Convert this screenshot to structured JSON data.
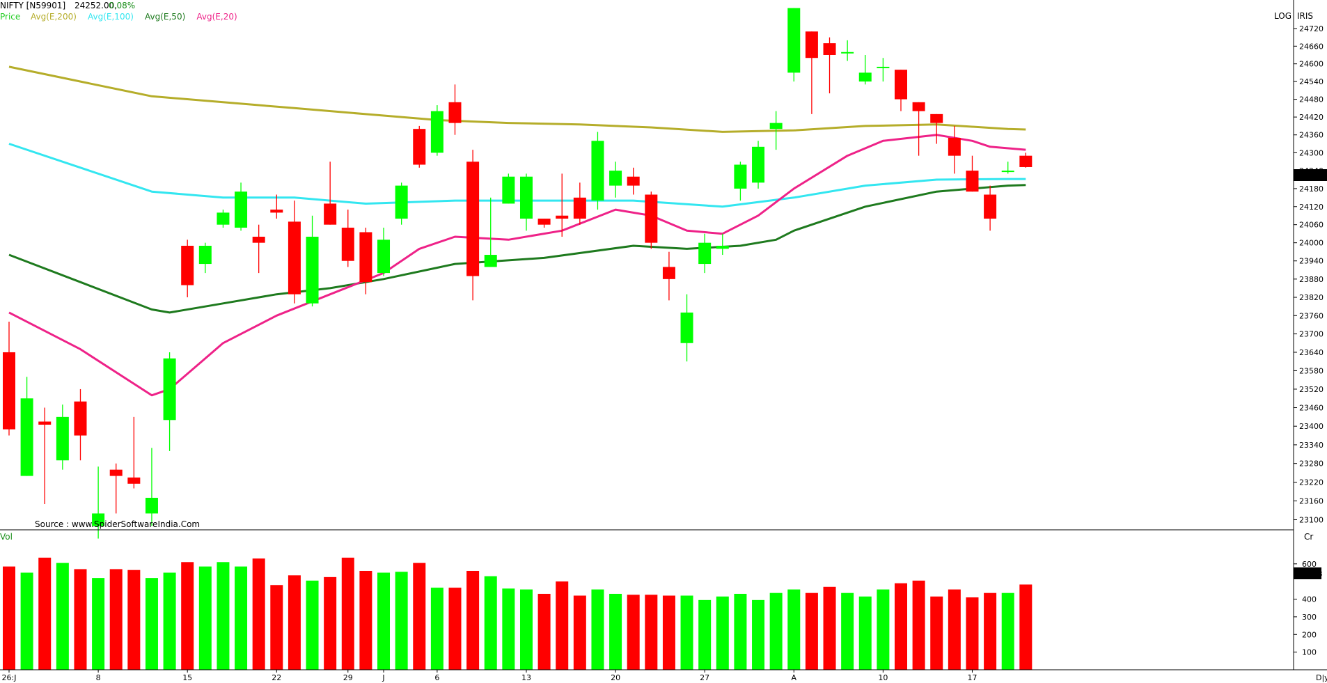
{
  "header": {
    "symbol": "NIFTY [N59901]",
    "price": "24252.00,",
    "change": "0.08%",
    "legend": [
      {
        "label": "Price",
        "color": "#22cc22"
      },
      {
        "label": "Avg(E,200)",
        "color": "#b5ad2a"
      },
      {
        "label": "Avg(E,100)",
        "color": "#33e6f0"
      },
      {
        "label": "Avg(E,50)",
        "color": "#1e7a1e"
      },
      {
        "label": "Avg(E,20)",
        "color": "#ee2288"
      }
    ],
    "log_label": "LOG",
    "iris_label": "IRIS"
  },
  "source_text": "Source : www.SpiderSoftwareIndia.Com",
  "volume_panel": {
    "label": "Vol",
    "unit": "Cr",
    "current_value": "483.08",
    "axis_ticks": [
      100,
      200,
      300,
      400,
      600
    ]
  },
  "price_panel": {
    "current_value": "24252.0",
    "axis_ticks": [
      23100,
      23160,
      23220,
      23280,
      23340,
      23400,
      23460,
      23520,
      23580,
      23640,
      23700,
      23760,
      23820,
      23880,
      23940,
      24000,
      24060,
      24120,
      24180,
      24240,
      24300,
      24360,
      24420,
      24480,
      24540,
      24600,
      24660,
      24720
    ]
  },
  "x_axis": {
    "period_label": "D|y",
    "labels": [
      {
        "text": "26:J",
        "index": 0
      },
      {
        "text": "8",
        "index": 5
      },
      {
        "text": "15",
        "index": 10
      },
      {
        "text": "22",
        "index": 15
      },
      {
        "text": "29",
        "index": 19
      },
      {
        "text": "J",
        "index": 21
      },
      {
        "text": "6",
        "index": 24
      },
      {
        "text": "13",
        "index": 29
      },
      {
        "text": "20",
        "index": 34
      },
      {
        "text": "27",
        "index": 39
      },
      {
        "text": "A",
        "index": 44
      },
      {
        "text": "10",
        "index": 49
      },
      {
        "text": "17",
        "index": 54
      }
    ]
  },
  "colors": {
    "up": "#00ff00",
    "down": "#ff0000",
    "ema200": "#b5ad2a",
    "ema100": "#33e6f0",
    "ema50": "#1e7a1e",
    "ema20": "#ee2288"
  },
  "chart_data": {
    "type": "candlestick",
    "scale": "log",
    "ylim": [
      23070,
      24770
    ],
    "volume_ylim": [
      0,
      720
    ],
    "candles": [
      {
        "o": 23640,
        "h": 23740,
        "l": 23370,
        "c": 23390,
        "v": 585
      },
      {
        "o": 23240,
        "h": 23560,
        "l": 23240,
        "c": 23490,
        "v": 550
      },
      {
        "o": 23415,
        "h": 23460,
        "l": 23150,
        "c": 23405,
        "v": 635
      },
      {
        "o": 23290,
        "h": 23470,
        "l": 23260,
        "c": 23430,
        "v": 605
      },
      {
        "o": 23480,
        "h": 23520,
        "l": 23290,
        "c": 23370,
        "v": 570
      },
      {
        "o": 23080,
        "h": 23270,
        "l": 23040,
        "c": 23120,
        "v": 520
      },
      {
        "o": 23260,
        "h": 23280,
        "l": 23120,
        "c": 23240,
        "v": 570
      },
      {
        "o": 23235,
        "h": 23430,
        "l": 23200,
        "c": 23215,
        "v": 565
      },
      {
        "o": 23120,
        "h": 23330,
        "l": 23080,
        "c": 23170,
        "v": 520
      },
      {
        "o": 23420,
        "h": 23640,
        "l": 23320,
        "c": 23620,
        "v": 550
      },
      {
        "o": 23990,
        "h": 24010,
        "l": 23820,
        "c": 23860,
        "v": 610
      },
      {
        "o": 23930,
        "h": 24000,
        "l": 23900,
        "c": 23990,
        "v": 585
      },
      {
        "o": 24060,
        "h": 24110,
        "l": 24050,
        "c": 24100,
        "v": 610
      },
      {
        "o": 24050,
        "h": 24200,
        "l": 24040,
        "c": 24170,
        "v": 585
      },
      {
        "o": 24020,
        "h": 24060,
        "l": 23900,
        "c": 24000,
        "v": 630
      },
      {
        "o": 24110,
        "h": 24160,
        "l": 24080,
        "c": 24100,
        "v": 480
      },
      {
        "o": 24070,
        "h": 24140,
        "l": 23800,
        "c": 23830,
        "v": 535
      },
      {
        "o": 23800,
        "h": 24090,
        "l": 23790,
        "c": 24020,
        "v": 505
      },
      {
        "o": 24130,
        "h": 24270,
        "l": 24060,
        "c": 24060,
        "v": 525
      },
      {
        "o": 24050,
        "h": 24110,
        "l": 23920,
        "c": 23940,
        "v": 635
      },
      {
        "o": 24035,
        "h": 24050,
        "l": 23830,
        "c": 23870,
        "v": 560
      },
      {
        "o": 23900,
        "h": 24050,
        "l": 23890,
        "c": 24010,
        "v": 550
      },
      {
        "o": 24080,
        "h": 24200,
        "l": 24060,
        "c": 24190,
        "v": 555
      },
      {
        "o": 24380,
        "h": 24390,
        "l": 24250,
        "c": 24260,
        "v": 605
      },
      {
        "o": 24300,
        "h": 24460,
        "l": 24290,
        "c": 24440,
        "v": 465
      },
      {
        "o": 24470,
        "h": 24530,
        "l": 24360,
        "c": 24400,
        "v": 465
      },
      {
        "o": 24270,
        "h": 24310,
        "l": 23810,
        "c": 23890,
        "v": 560
      },
      {
        "o": 23920,
        "h": 24150,
        "l": 23920,
        "c": 23960,
        "v": 530
      },
      {
        "o": 24130,
        "h": 24230,
        "l": 24130,
        "c": 24220,
        "v": 460
      },
      {
        "o": 24080,
        "h": 24230,
        "l": 24040,
        "c": 24220,
        "v": 455
      },
      {
        "o": 24080,
        "h": 24080,
        "l": 24050,
        "c": 24060,
        "v": 430
      },
      {
        "o": 24090,
        "h": 24230,
        "l": 24020,
        "c": 24080,
        "v": 500
      },
      {
        "o": 24150,
        "h": 24200,
        "l": 24060,
        "c": 24080,
        "v": 420
      },
      {
        "o": 24140,
        "h": 24370,
        "l": 24110,
        "c": 24340,
        "v": 455
      },
      {
        "o": 24190,
        "h": 24270,
        "l": 24150,
        "c": 24240,
        "v": 430
      },
      {
        "o": 24220,
        "h": 24250,
        "l": 24160,
        "c": 24190,
        "v": 425
      },
      {
        "o": 24160,
        "h": 24170,
        "l": 23980,
        "c": 24000,
        "v": 425
      },
      {
        "o": 23920,
        "h": 23970,
        "l": 23810,
        "c": 23880,
        "v": 420
      },
      {
        "o": 23670,
        "h": 23830,
        "l": 23610,
        "c": 23770,
        "v": 420
      },
      {
        "o": 23930,
        "h": 24030,
        "l": 23900,
        "c": 24000,
        "v": 395
      },
      {
        "o": 23980,
        "h": 24030,
        "l": 23960,
        "c": 23990,
        "v": 415
      },
      {
        "o": 24180,
        "h": 24270,
        "l": 24140,
        "c": 24260,
        "v": 430
      },
      {
        "o": 24200,
        "h": 24340,
        "l": 24180,
        "c": 24320,
        "v": 395
      },
      {
        "o": 24380,
        "h": 24440,
        "l": 24310,
        "c": 24400,
        "v": 435
      },
      {
        "o": 24570,
        "h": 24790,
        "l": 24540,
        "c": 24790,
        "v": 455
      },
      {
        "o": 24710,
        "h": 24710,
        "l": 24430,
        "c": 24620,
        "v": 435
      },
      {
        "o": 24670,
        "h": 24690,
        "l": 24500,
        "c": 24630,
        "v": 470
      },
      {
        "o": 24640,
        "h": 24680,
        "l": 24610,
        "c": 24640,
        "v": 435
      },
      {
        "o": 24540,
        "h": 24630,
        "l": 24530,
        "c": 24570,
        "v": 415
      },
      {
        "o": 24590,
        "h": 24620,
        "l": 24540,
        "c": 24590,
        "v": 455
      },
      {
        "o": 24580,
        "h": 24580,
        "l": 24440,
        "c": 24480,
        "v": 490
      },
      {
        "o": 24470,
        "h": 24470,
        "l": 24290,
        "c": 24440,
        "v": 505
      },
      {
        "o": 24430,
        "h": 24430,
        "l": 24330,
        "c": 24400,
        "v": 415
      },
      {
        "o": 24350,
        "h": 24390,
        "l": 24230,
        "c": 24290,
        "v": 455
      },
      {
        "o": 24240,
        "h": 24290,
        "l": 24170,
        "c": 24170,
        "v": 410
      },
      {
        "o": 24160,
        "h": 24190,
        "l": 24040,
        "c": 24080,
        "v": 435
      },
      {
        "o": 24240,
        "h": 24270,
        "l": 24230,
        "c": 24240,
        "v": 435
      },
      {
        "o": 24290,
        "h": 24300,
        "l": 24250,
        "c": 24252,
        "v": 483
      }
    ],
    "ema200": [
      [
        0,
        24590
      ],
      [
        8,
        24490
      ],
      [
        12,
        24470
      ],
      [
        16,
        24450
      ],
      [
        20,
        24430
      ],
      [
        24,
        24410
      ],
      [
        28,
        24400
      ],
      [
        32,
        24395
      ],
      [
        36,
        24385
      ],
      [
        40,
        24370
      ],
      [
        44,
        24375
      ],
      [
        48,
        24390
      ],
      [
        52,
        24395
      ],
      [
        56,
        24380
      ],
      [
        57,
        24378
      ]
    ],
    "ema100": [
      [
        0,
        24330
      ],
      [
        4,
        24250
      ],
      [
        8,
        24170
      ],
      [
        12,
        24150
      ],
      [
        16,
        24150
      ],
      [
        20,
        24130
      ],
      [
        25,
        24140
      ],
      [
        30,
        24140
      ],
      [
        35,
        24140
      ],
      [
        40,
        24120
      ],
      [
        44,
        24150
      ],
      [
        48,
        24190
      ],
      [
        52,
        24210
      ],
      [
        56,
        24212
      ],
      [
        57,
        24212
      ]
    ],
    "ema50": [
      [
        0,
        23960
      ],
      [
        4,
        23870
      ],
      [
        8,
        23780
      ],
      [
        9,
        23770
      ],
      [
        12,
        23800
      ],
      [
        15,
        23830
      ],
      [
        18,
        23850
      ],
      [
        21,
        23880
      ],
      [
        25,
        23930
      ],
      [
        30,
        23950
      ],
      [
        35,
        23990
      ],
      [
        38,
        23980
      ],
      [
        41,
        23990
      ],
      [
        43,
        24010
      ],
      [
        44,
        24040
      ],
      [
        48,
        24120
      ],
      [
        52,
        24170
      ],
      [
        56,
        24190
      ],
      [
        57,
        24192
      ]
    ],
    "ema20": [
      [
        0,
        23770
      ],
      [
        4,
        23650
      ],
      [
        8,
        23500
      ],
      [
        9,
        23520
      ],
      [
        12,
        23670
      ],
      [
        15,
        23760
      ],
      [
        18,
        23830
      ],
      [
        21,
        23900
      ],
      [
        23,
        23980
      ],
      [
        25,
        24020
      ],
      [
        28,
        24010
      ],
      [
        31,
        24040
      ],
      [
        34,
        24110
      ],
      [
        36,
        24090
      ],
      [
        38,
        24040
      ],
      [
        40,
        24030
      ],
      [
        42,
        24090
      ],
      [
        44,
        24180
      ],
      [
        47,
        24290
      ],
      [
        49,
        24340
      ],
      [
        52,
        24360
      ],
      [
        54,
        24340
      ],
      [
        55,
        24320
      ],
      [
        57,
        24310
      ]
    ]
  }
}
